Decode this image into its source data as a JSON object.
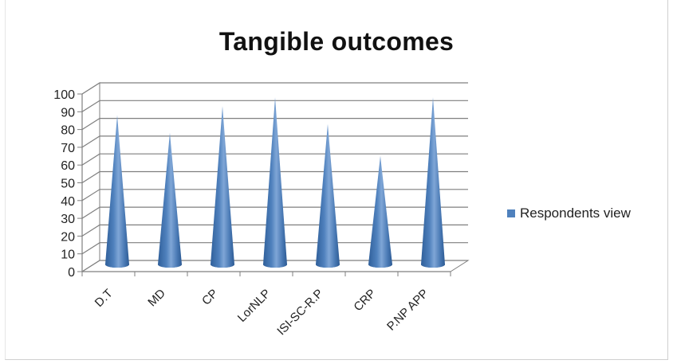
{
  "chart_data": {
    "type": "bar",
    "style": "3d-cone",
    "title": "Tangible outcomes",
    "categories": [
      "D.T",
      "MD",
      "CP",
      "LorNLP",
      "ISI-SC-R.P",
      "CRP",
      "P.NP APP"
    ],
    "series": [
      {
        "name": "Respondents view",
        "values": [
          85,
          75,
          90,
          95,
          80,
          62,
          95
        ],
        "color": "#4f81bd"
      }
    ],
    "ylim": [
      0,
      100
    ],
    "yticks": [
      0,
      10,
      20,
      30,
      40,
      50,
      60,
      70,
      80,
      90,
      100
    ],
    "grid": true,
    "legend_position": "right"
  }
}
